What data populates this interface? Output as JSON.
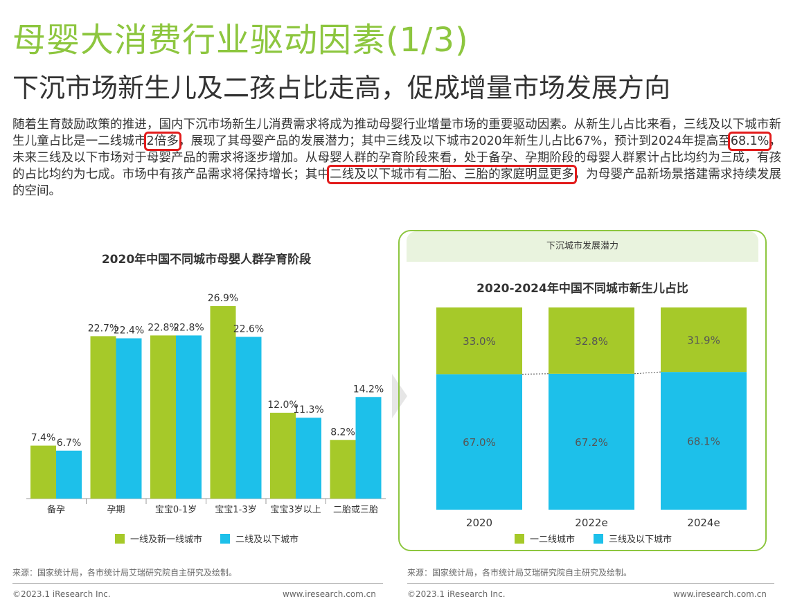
{
  "title": "母婴大消费行业驱动因素(1/3)",
  "subtitle": "下沉市场新生儿及二孩占比走高，促成增量市场发展方向",
  "intro": {
    "p1": "随着生育鼓励政策的推进，国内下沉市场新生儿消费需求将成为推动母婴行业增量市场的重要驱动因素。从新生儿占比来看，三线及以下城市新生儿童占比是一二线城市",
    "h1": "2倍多",
    "p2": "，展现了其母婴产品的发展潜力；其中三线及以下城市2020年新生儿占比67%，预计到2024年提高至",
    "h2": "68.1%",
    "p3": "，未来三线及以下市场对于母婴产品的需求将逐步增加。从母婴人群的孕育阶段来看，处于备孕、孕期阶段的母婴人群累计占比均约为三成，有孩的占比均约为七成。市场中有孩产品需求将保持增长；其中",
    "h3": "二线及以下城市有二胎、三胎的家庭明显更多",
    "p4": "，为母婴产品新场景搭建需求持续发展的空间。"
  },
  "right_header": "下沉城市发展潜力",
  "footer": {
    "source_left": "来源：国家统计局，各市统计局艾瑞研究院自主研究及绘制。",
    "source_right": "来源：国家统计局，各市统计局艾瑞研究院自主研究及绘制。",
    "copyright_left": "©2023.1 iResearch Inc.",
    "url_left": "www.iresearch.com.cn",
    "copyright_right": "©2023.1 iResearch Inc.",
    "url_right": "www.iresearch.com.cn"
  },
  "colors": {
    "green": "#a6c929",
    "blue": "#1dc0ea",
    "title_green": "#8dc63f",
    "highlight": "#e21b1b"
  },
  "chart_data": [
    {
      "type": "bar",
      "title": "2020年中国不同城市母婴人群孕育阶段",
      "categories": [
        "备孕",
        "孕期",
        "宝宝0-1岁",
        "宝宝1-3岁",
        "宝宝3岁以上",
        "二胎或三胎"
      ],
      "series": [
        {
          "name": "一线及新一线城市",
          "values": [
            7.4,
            22.7,
            22.8,
            26.9,
            12.0,
            8.2
          ],
          "labels": [
            "7.4%",
            "22.7%",
            "22.8%",
            "26.9%",
            "12.0%",
            "8.2%"
          ]
        },
        {
          "name": "二线及以下城市",
          "values": [
            6.7,
            22.4,
            22.8,
            22.6,
            11.3,
            14.2
          ],
          "labels": [
            "6.7%",
            "22.4%",
            "22.8%",
            "22.6%",
            "11.3%",
            "14.2%"
          ]
        }
      ],
      "ylim": [
        0,
        30
      ],
      "legend": "bottom"
    },
    {
      "type": "bar",
      "stacked": true,
      "title": "2020-2024年中国不同城市新生儿占比",
      "categories": [
        "2020",
        "2022e",
        "2024e"
      ],
      "series": [
        {
          "name": "三线及以下城市",
          "values": [
            67.0,
            67.2,
            68.1
          ],
          "labels": [
            "67.0%",
            "67.2%",
            "68.1%"
          ]
        },
        {
          "name": "一二线城市",
          "values": [
            33.0,
            32.8,
            31.9
          ],
          "labels": [
            "33.0%",
            "32.8%",
            "31.9%"
          ]
        }
      ],
      "ylim": [
        0,
        100
      ],
      "legend": "bottom"
    }
  ]
}
